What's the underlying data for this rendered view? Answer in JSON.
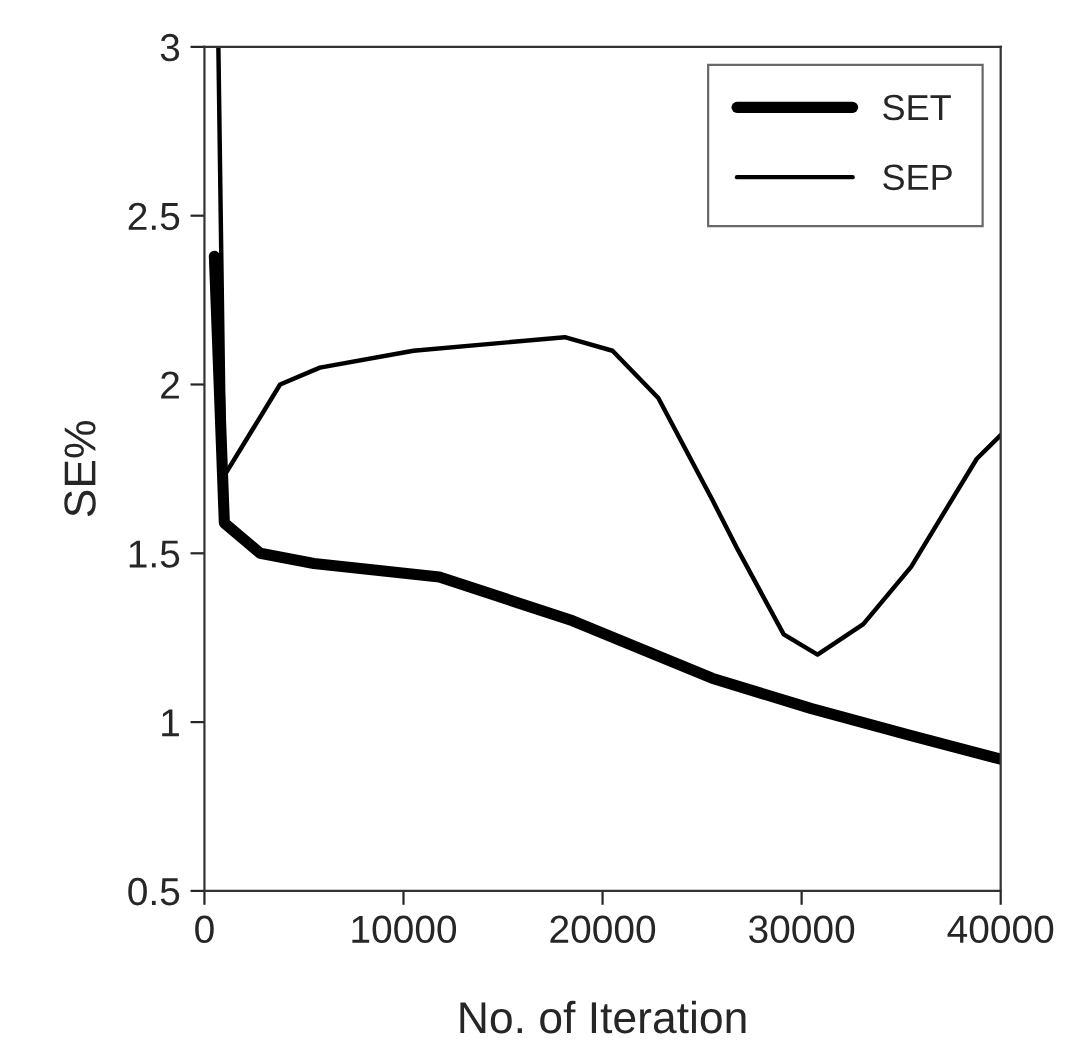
{
  "chart_data": {
    "type": "line",
    "xlabel": "No. of Iteration",
    "ylabel": "SE%",
    "xlim": [
      0,
      40000
    ],
    "xticks": [
      0,
      10000,
      20000,
      30000,
      40000
    ],
    "ylim": [
      0.5,
      3
    ],
    "yticks": [
      0.5,
      1,
      1.5,
      2,
      2.5,
      3
    ],
    "grid": false,
    "legend": "top right",
    "marker": "none",
    "line_style": "solid",
    "series": [
      {
        "name": "SET",
        "color": "#000000",
        "x": [
          500,
          1000,
          2800,
          5500,
          11800,
          18500,
          25500,
          30500,
          35500,
          40000
        ],
        "values": [
          2.38,
          1.59,
          1.5,
          1.47,
          1.43,
          1.3,
          1.13,
          1.04,
          0.96,
          0.89
        ]
      },
      {
        "name": "SEP",
        "color": "#000000",
        "x": [
          700,
          1000,
          3800,
          5800,
          10500,
          18100,
          20500,
          22800,
          25500,
          26800,
          29100,
          30800,
          33100,
          35500,
          38800,
          40000
        ],
        "values": [
          3,
          1.73,
          2.0,
          2.05,
          2.1,
          2.14,
          2.1,
          1.96,
          1.66,
          1.51,
          1.26,
          1.2,
          1.29,
          1.46,
          1.78,
          1.85
        ]
      }
    ]
  }
}
